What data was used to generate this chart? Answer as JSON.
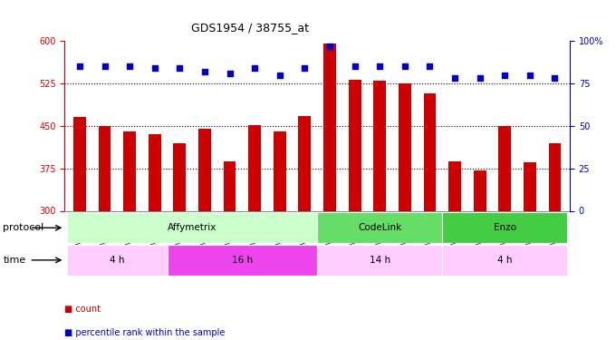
{
  "title": "GDS1954 / 38755_at",
  "samples": [
    "GSM73359",
    "GSM73360",
    "GSM73361",
    "GSM73362",
    "GSM73363",
    "GSM73344",
    "GSM73345",
    "GSM73346",
    "GSM73347",
    "GSM73348",
    "GSM73349",
    "GSM73350",
    "GSM73351",
    "GSM73352",
    "GSM73353",
    "GSM73354",
    "GSM73355",
    "GSM73356",
    "GSM73357",
    "GSM73358"
  ],
  "counts": [
    465,
    450,
    440,
    435,
    420,
    445,
    388,
    452,
    440,
    468,
    595,
    532,
    530,
    525,
    507,
    388,
    372,
    450,
    385,
    420
  ],
  "percentile_ranks": [
    85,
    85,
    85,
    84,
    84,
    82,
    81,
    84,
    80,
    84,
    97,
    85,
    85,
    85,
    85,
    78,
    78,
    80,
    80,
    78
  ],
  "ymin": 300,
  "ymax": 600,
  "yticks": [
    300,
    375,
    450,
    525,
    600
  ],
  "right_yticks": [
    0,
    25,
    50,
    75,
    100
  ],
  "dotted_lines": [
    375,
    450,
    525
  ],
  "bar_color": "#cc0000",
  "dot_color": "#0000cc",
  "protocol_groups": [
    {
      "label": "Affymetrix",
      "start": 0,
      "end": 10,
      "color": "#ccffcc"
    },
    {
      "label": "CodeLink",
      "start": 10,
      "end": 15,
      "color": "#66dd66"
    },
    {
      "label": "Enzo",
      "start": 15,
      "end": 20,
      "color": "#44cc44"
    }
  ],
  "time_groups": [
    {
      "label": "4 h",
      "start": 0,
      "end": 4,
      "color": "#ffccff"
    },
    {
      "label": "16 h",
      "start": 4,
      "end": 10,
      "color": "#ee44ee"
    },
    {
      "label": "14 h",
      "start": 10,
      "end": 15,
      "color": "#ffccff"
    },
    {
      "label": "4 h",
      "start": 15,
      "end": 20,
      "color": "#ffccff"
    }
  ],
  "bg_color": "#ffffff",
  "plot_bg_color": "#ffffff",
  "axis_left_color": "#cc0000",
  "axis_right_color": "#0000cc",
  "protocol_label": "protocol",
  "time_label": "time",
  "legend_count": "count",
  "legend_percentile": "percentile rank within the sample"
}
